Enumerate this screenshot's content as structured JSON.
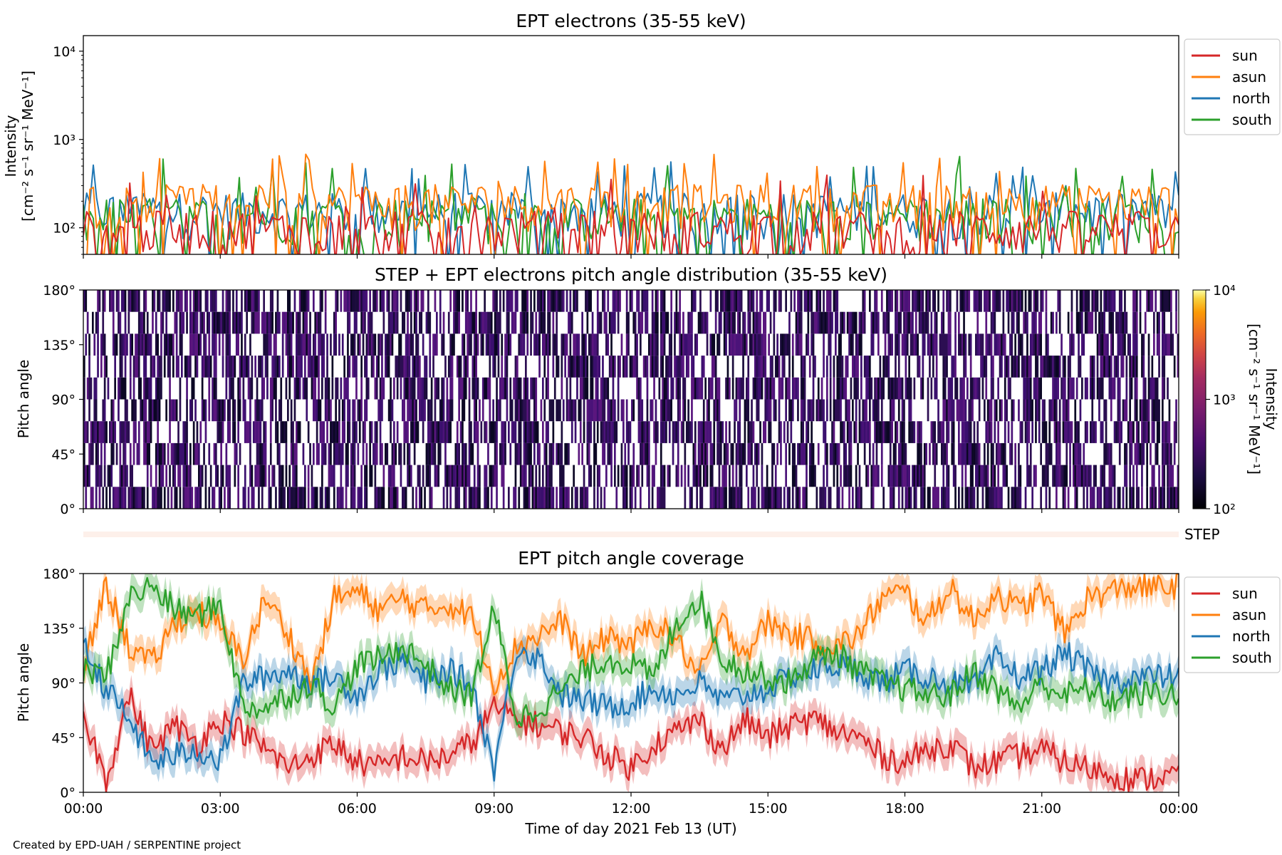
{
  "figure": {
    "credit": "Created by EPD-UAH / SERPENTINE project",
    "xlabel": "Time of day 2021 Feb 13 (UT)",
    "xticks": [
      "00:00",
      "03:00",
      "06:00",
      "09:00",
      "12:00",
      "15:00",
      "18:00",
      "21:00",
      "00:00"
    ]
  },
  "colors": {
    "sun": "#d62728",
    "asun": "#ff7f0e",
    "north": "#1f77b4",
    "south": "#2ca02c",
    "step_band": "#fdf0ea"
  },
  "chart_data": [
    {
      "id": "intensity",
      "type": "line",
      "title": "EPT electrons (35-55 keV)",
      "ylabel": "Intensity",
      "yunit": "[cm⁻² s⁻¹ sr⁻¹ MeV⁻¹]",
      "yscale": "log",
      "ylim": [
        50,
        15000
      ],
      "yticks": [
        {
          "value": 100,
          "label": "10²"
        },
        {
          "value": 1000,
          "label": "10³"
        },
        {
          "value": 10000,
          "label": "10⁴"
        }
      ],
      "xlim_hours": [
        0,
        24
      ],
      "legend": {
        "placement": "outside-right-top",
        "entries": [
          "sun",
          "asun",
          "north",
          "south"
        ]
      },
      "series": [
        {
          "name": "sun",
          "typical": 100,
          "peak": 400,
          "points": 330
        },
        {
          "name": "asun",
          "typical": 200,
          "peak": 680,
          "points": 330
        },
        {
          "name": "north",
          "typical": 160,
          "peak": 560,
          "points": 330
        },
        {
          "name": "south",
          "typical": 140,
          "peak": 720,
          "points": 330
        }
      ]
    },
    {
      "id": "pad",
      "type": "heatmap",
      "title": "STEP + EPT electrons pitch angle distribution (35-55 keV)",
      "ylabel": "Pitch angle",
      "ylim": [
        0,
        180
      ],
      "yticks": [
        "0°",
        "45°",
        "90°",
        "135°",
        "180°"
      ],
      "xlim_hours": [
        0,
        24
      ],
      "colorscale": "inferno",
      "colorbar": {
        "label": "Intensity",
        "unit": "[cm⁻² s⁻¹ sr⁻¹ MeV⁻¹]",
        "scale": "log",
        "range": [
          100,
          10000
        ],
        "ticks": [
          "10²",
          "10³",
          "10⁴"
        ]
      },
      "observed_range": [
        100,
        800
      ]
    },
    {
      "id": "step",
      "type": "heatmap",
      "label": "STEP"
    },
    {
      "id": "coverage",
      "type": "line",
      "title": "EPT pitch angle coverage",
      "ylabel": "Pitch angle",
      "ylim": [
        0,
        180
      ],
      "yticks": [
        "0°",
        "45°",
        "90°",
        "135°",
        "180°"
      ],
      "xlim_hours": [
        0,
        24
      ],
      "band_halfwidth_deg": 11,
      "legend": {
        "placement": "outside-right-top",
        "entries": [
          "sun",
          "asun",
          "north",
          "south"
        ]
      },
      "series": [
        {
          "name": "sun",
          "x_hours": [
            0,
            0.5,
            1,
            1.5,
            2,
            2.5,
            3,
            3.5,
            4,
            4.5,
            5,
            5.5,
            6,
            6.5,
            7,
            7.5,
            8,
            8.5,
            9,
            9.5,
            10,
            10.5,
            11,
            11.5,
            12,
            12.5,
            13,
            13.5,
            14,
            14.5,
            15,
            15.5,
            16,
            16.5,
            17,
            17.5,
            18,
            18.5,
            19,
            19.5,
            20,
            20.5,
            21,
            21.5,
            22,
            22.5,
            23,
            23.5,
            24
          ],
          "y": [
            65,
            10,
            80,
            35,
            55,
            40,
            60,
            50,
            35,
            20,
            30,
            40,
            25,
            20,
            30,
            25,
            30,
            40,
            70,
            60,
            55,
            50,
            45,
            30,
            20,
            40,
            50,
            60,
            35,
            60,
            45,
            55,
            60,
            50,
            45,
            30,
            25,
            35,
            40,
            20,
            25,
            30,
            35,
            25,
            20,
            15,
            10,
            12,
            15
          ]
        },
        {
          "name": "asun",
          "x_hours": [
            0,
            0.5,
            1,
            1.5,
            2,
            2.5,
            3,
            3.5,
            4,
            4.5,
            5,
            5.5,
            6,
            6.5,
            7,
            7.5,
            8,
            8.5,
            9,
            9.5,
            10,
            10.5,
            11,
            11.5,
            12,
            12.5,
            13,
            13.5,
            14,
            14.5,
            15,
            15.5,
            16,
            16.5,
            17,
            17.5,
            18,
            18.5,
            19,
            19.5,
            20,
            20.5,
            21,
            21.5,
            22,
            22.5,
            23,
            23.5,
            24
          ],
          "y": [
            100,
            170,
            120,
            105,
            140,
            150,
            135,
            110,
            160,
            130,
            90,
            160,
            165,
            150,
            160,
            150,
            155,
            145,
            90,
            120,
            130,
            140,
            110,
            130,
            120,
            140,
            125,
            95,
            140,
            115,
            140,
            130,
            125,
            120,
            130,
            160,
            165,
            140,
            170,
            140,
            165,
            150,
            165,
            130,
            160,
            165,
            170,
            168,
            170
          ]
        },
        {
          "name": "north",
          "x_hours": [
            0,
            0.5,
            1,
            1.5,
            2,
            2.5,
            3,
            3.5,
            4,
            4.5,
            5,
            5.5,
            6,
            6.5,
            7,
            7.5,
            8,
            8.5,
            9,
            9.5,
            10,
            10.5,
            11,
            11.5,
            12,
            12.5,
            13,
            13.5,
            14,
            14.5,
            15,
            15.5,
            16,
            16.5,
            17,
            17.5,
            18,
            18.5,
            19,
            19.5,
            20,
            20.5,
            21,
            21.5,
            22,
            22.5,
            23,
            23.5,
            24
          ],
          "y": [
            120,
            85,
            60,
            25,
            30,
            35,
            25,
            90,
            95,
            100,
            90,
            95,
            80,
            100,
            110,
            90,
            100,
            90,
            20,
            120,
            110,
            80,
            75,
            70,
            75,
            85,
            80,
            90,
            75,
            80,
            85,
            95,
            100,
            105,
            100,
            90,
            100,
            95,
            90,
            85,
            110,
            95,
            100,
            115,
            100,
            90,
            95,
            95,
            95
          ]
        },
        {
          "name": "south",
          "x_hours": [
            0,
            0.5,
            1,
            1.5,
            2,
            2.5,
            3,
            3.5,
            4,
            4.5,
            5,
            5.5,
            6,
            6.5,
            7,
            7.5,
            8,
            8.5,
            9,
            9.5,
            10,
            10.5,
            11,
            11.5,
            12,
            12.5,
            13,
            13.5,
            14,
            14.5,
            15,
            15.5,
            16,
            16.5,
            17,
            17.5,
            18,
            18.5,
            19,
            19.5,
            20,
            20.5,
            21,
            21.5,
            22,
            22.5,
            23,
            23.5,
            24
          ],
          "y": [
            100,
            95,
            160,
            170,
            150,
            145,
            155,
            70,
            70,
            80,
            90,
            70,
            105,
            110,
            120,
            105,
            85,
            80,
            150,
            60,
            70,
            85,
            100,
            110,
            105,
            95,
            140,
            160,
            110,
            100,
            95,
            90,
            110,
            115,
            100,
            90,
            85,
            80,
            80,
            100,
            85,
            70,
            90,
            80,
            85,
            75,
            80,
            82,
            80
          ]
        }
      ]
    }
  ]
}
